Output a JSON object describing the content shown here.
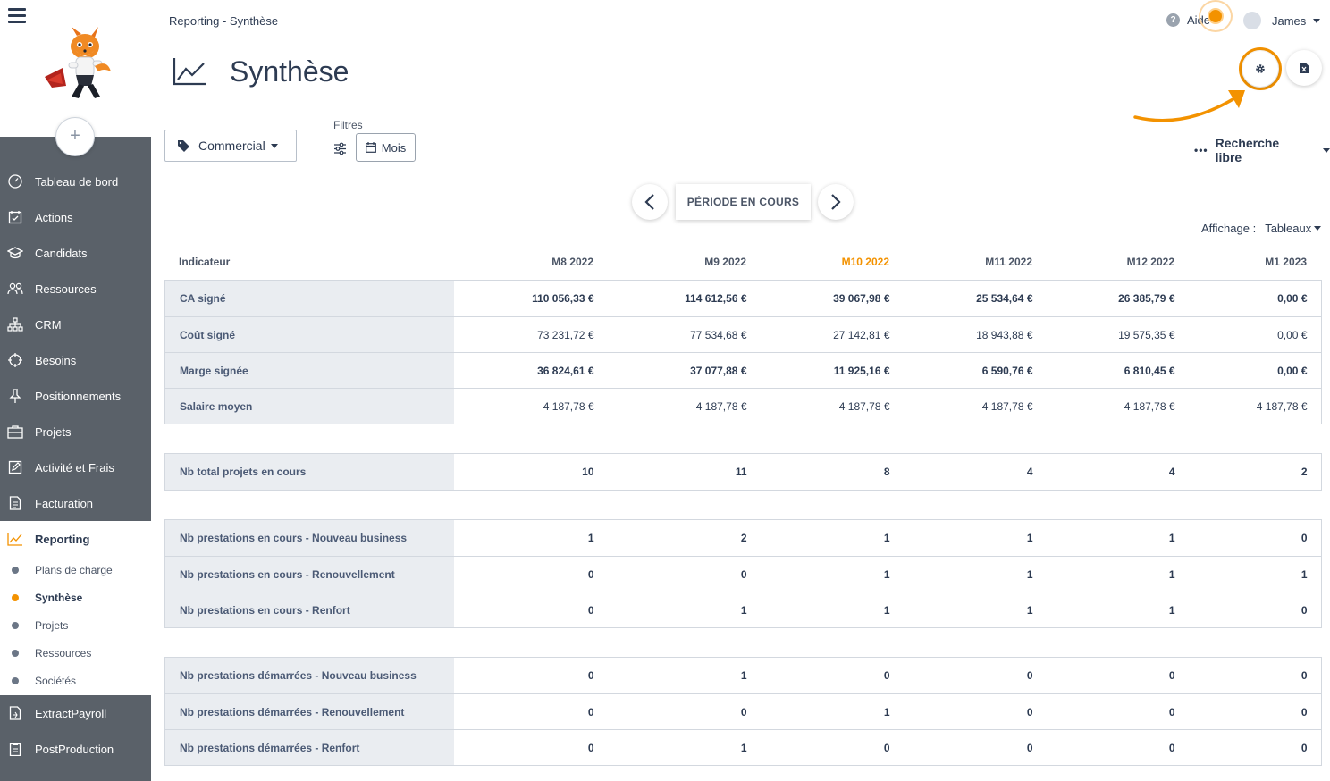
{
  "app": {
    "breadcrumb": "Reporting - Synthèse",
    "page_title": "Synthèse",
    "accent_color": "#f39200"
  },
  "header": {
    "help_label": "Aide",
    "user_name": "James"
  },
  "sidebar": {
    "add_label": "+",
    "items": [
      {
        "label": "Tableau de bord",
        "icon": "dashboard-icon"
      },
      {
        "label": "Actions",
        "icon": "actions-icon"
      },
      {
        "label": "Candidats",
        "icon": "graduation-cap-icon"
      },
      {
        "label": "Ressources",
        "icon": "people-icon"
      },
      {
        "label": "CRM",
        "icon": "sitemap-icon"
      },
      {
        "label": "Besoins",
        "icon": "crosshair-icon"
      },
      {
        "label": "Positionnements",
        "icon": "pin-icon"
      },
      {
        "label": "Projets",
        "icon": "briefcase-icon"
      },
      {
        "label": "Activité et Frais",
        "icon": "edit-icon"
      },
      {
        "label": "Facturation",
        "icon": "invoice-icon"
      },
      {
        "label": "Reporting",
        "icon": "chart-line-icon"
      },
      {
        "label": "ExtractPayroll",
        "icon": "export-icon"
      },
      {
        "label": "PostProduction",
        "icon": "clipboard-icon"
      }
    ],
    "reporting_sub": [
      {
        "label": "Plans de charge"
      },
      {
        "label": "Synthèse"
      },
      {
        "label": "Projets"
      },
      {
        "label": "Ressources"
      },
      {
        "label": "Sociétés"
      }
    ]
  },
  "filters": {
    "commercial_label": "Commercial",
    "filters_label": "Filtres",
    "mois_label": "Mois",
    "recherche_label": "Recherche libre",
    "periode_label": "PÉRIODE EN COURS",
    "affichage_label": "Affichage :",
    "affichage_value": "Tableaux"
  },
  "table": {
    "indicator_header": "Indicateur",
    "columns": [
      "M8 2022",
      "M9 2022",
      "M10 2022",
      "M11 2022",
      "M12 2022",
      "M1 2023"
    ],
    "groups": [
      [
        {
          "label": "CA signé",
          "bold": true,
          "values": [
            "110 056,33 €",
            "114 612,56 €",
            "39 067,98 €",
            "25 534,64 €",
            "26 385,79 €",
            "0,00 €"
          ]
        },
        {
          "label": "Coût signé",
          "bold": false,
          "values": [
            "73 231,72 €",
            "77 534,68 €",
            "27 142,81 €",
            "18 943,88 €",
            "19 575,35 €",
            "0,00 €"
          ]
        },
        {
          "label": "Marge signée",
          "bold": true,
          "values": [
            "36 824,61 €",
            "37 077,88 €",
            "11 925,16 €",
            "6 590,76 €",
            "6 810,45 €",
            "0,00 €"
          ]
        },
        {
          "label": "Salaire moyen",
          "bold": false,
          "values": [
            "4 187,78 €",
            "4 187,78 €",
            "4 187,78 €",
            "4 187,78 €",
            "4 187,78 €",
            "4 187,78 €"
          ]
        }
      ],
      [
        {
          "label": "Nb total projets en cours",
          "bold": true,
          "values": [
            "10",
            "11",
            "8",
            "4",
            "4",
            "2"
          ]
        }
      ],
      [
        {
          "label": "Nb prestations en cours - Nouveau business",
          "bold": true,
          "values": [
            "1",
            "2",
            "1",
            "1",
            "1",
            "0"
          ]
        },
        {
          "label": "Nb prestations en cours - Renouvellement",
          "bold": true,
          "values": [
            "0",
            "0",
            "1",
            "1",
            "1",
            "1"
          ]
        },
        {
          "label": "Nb prestations en cours - Renfort",
          "bold": true,
          "values": [
            "0",
            "1",
            "1",
            "1",
            "1",
            "0"
          ]
        }
      ],
      [
        {
          "label": "Nb prestations démarrées - Nouveau business",
          "bold": true,
          "values": [
            "0",
            "1",
            "0",
            "0",
            "0",
            "0"
          ]
        },
        {
          "label": "Nb prestations démarrées - Renouvellement",
          "bold": true,
          "values": [
            "0",
            "0",
            "1",
            "0",
            "0",
            "0"
          ]
        },
        {
          "label": "Nb prestations démarrées - Renfort",
          "bold": true,
          "values": [
            "0",
            "1",
            "0",
            "0",
            "0",
            "0"
          ]
        }
      ]
    ]
  }
}
